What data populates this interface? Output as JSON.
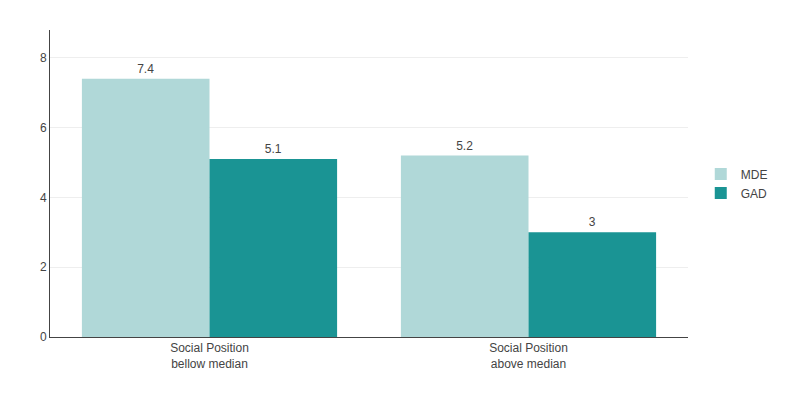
{
  "chart_data": {
    "type": "bar",
    "categories": [
      "Social Position\nbellow median",
      "Social Position\nabove median"
    ],
    "series": [
      {
        "name": "MDE",
        "color": "#b0d8d8",
        "values": [
          7.4,
          5.2
        ]
      },
      {
        "name": "GAD",
        "color": "#1a9494",
        "values": [
          5.1,
          3.0
        ]
      }
    ],
    "ylim": [
      0,
      8.8
    ],
    "yticks": [
      0,
      2,
      4,
      6,
      8
    ],
    "grid": true,
    "legend": "right",
    "data_labels": true
  }
}
